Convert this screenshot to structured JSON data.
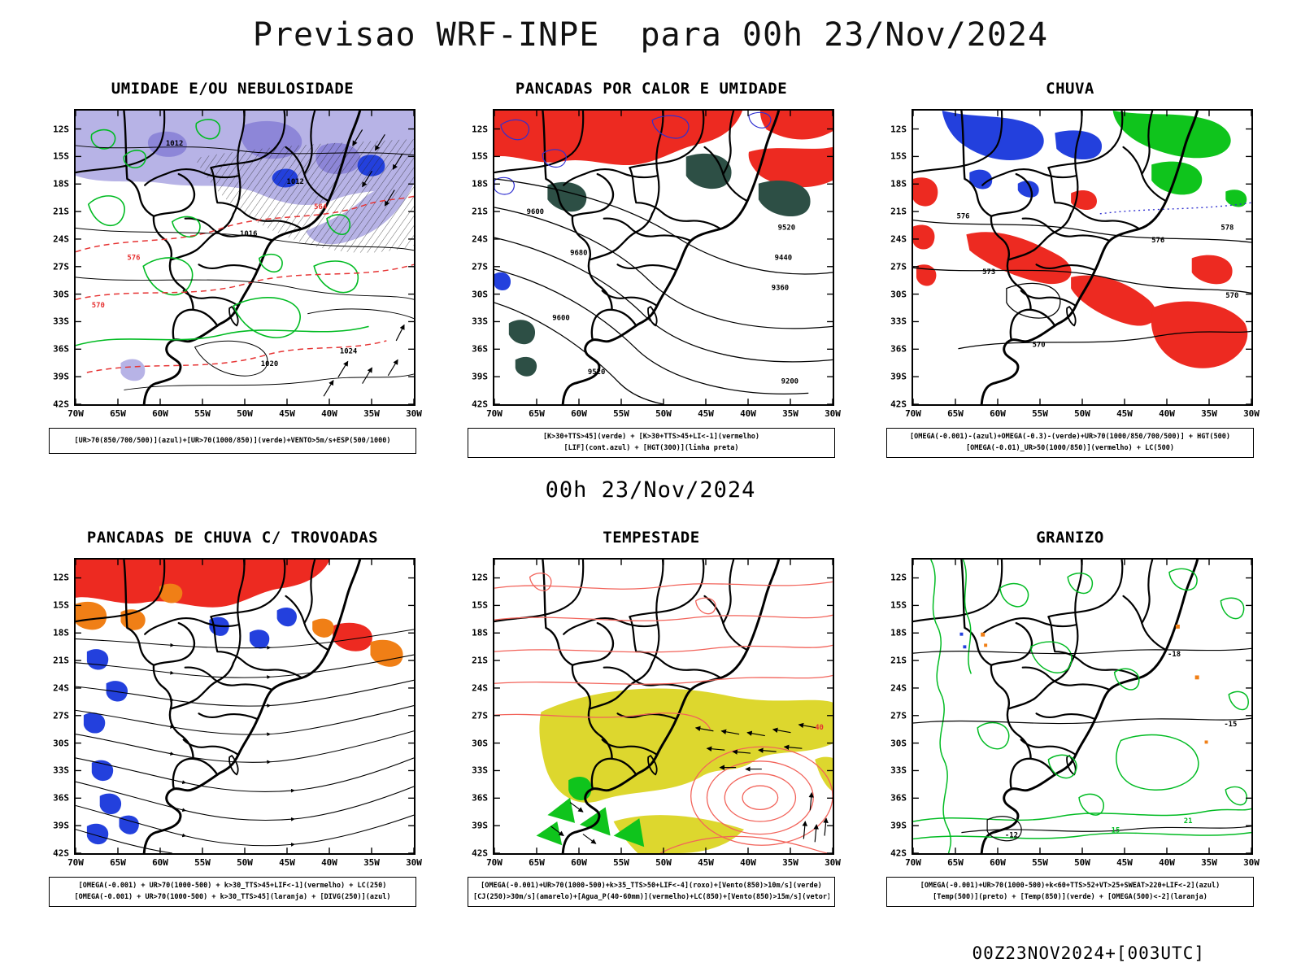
{
  "header": {
    "title": "Previsao WRF-INPE  para 00h 23/Nov/2024"
  },
  "valid_time_label": "00h 23/Nov/2024",
  "footer": {
    "run_label": "00Z23NOV2024+[003UTC]"
  },
  "axes": {
    "lat": [
      "12S",
      "15S",
      "18S",
      "21S",
      "24S",
      "27S",
      "30S",
      "33S",
      "36S",
      "39S",
      "42S"
    ],
    "lon": [
      "70W",
      "65W",
      "60W",
      "55W",
      "50W",
      "45W",
      "40W",
      "35W",
      "30W"
    ]
  },
  "colors": {
    "red": "#ed2a21",
    "orange": "#f07f16",
    "blue": "#2340dd",
    "green": "#0fc41c",
    "dark_teal": "#2d4f45",
    "lavender": "#b7b3e6",
    "purple": "#8d86d8",
    "yellow": "#ddd72e",
    "pink_contour": "#f2635a",
    "green_contour": "#00bb22",
    "blue_contour": "#2f2fd0",
    "red_contour": "#e63333"
  },
  "panels": [
    {
      "id": "umidade",
      "title": "UMIDADE E/OU NEBULOSIDADE",
      "caption1": "[UR>70(850/700/500)](azul)+[UR>70(1000/850)](verde)+VENTO>5m/s+ESP(500/1000)",
      "labels": {
        "l1": "1012",
        "l2": "1012",
        "l3": "1016",
        "l4": "1020",
        "l5": "1024",
        "l6": "576",
        "l7": "570",
        "l8": "564"
      }
    },
    {
      "id": "pancadas-calor-umidade",
      "title": "PANCADAS POR CALOR E UMIDADE",
      "caption1": "[K>30+TTS>45](verde) + [K>30+TTS>45+LI<-1](vermelho)",
      "caption2": "[LIF](cont.azul) + [HGT(300)](linha preta)",
      "labels": {
        "l1": "9680",
        "l2": "9600",
        "l3": "9520",
        "l4": "9440",
        "l5": "9360",
        "l6": "9600",
        "l7": "9520",
        "l8": "9200"
      }
    },
    {
      "id": "chuva",
      "title": "CHUVA",
      "caption1": "[OMEGA(-0.001)-(azul)+OMEGA(-0.3)-(verde)+UR>70(1000/850/700/500)] + HGT(500)",
      "caption2": "[OMEGA(-0.01)_UR>50(1000/850)](vermelho) + LC(500)",
      "labels": {
        "l1": "578",
        "l2": "576",
        "l3": "573",
        "l4": "570",
        "l5": "576",
        "l6": "570"
      }
    },
    {
      "id": "pancadas-trovoadas",
      "title": "PANCADAS DE CHUVA C/ TROVOADAS",
      "caption1": "[OMEGA(-0.001) + UR>70(1000-500) + k>30_TTS>45+LIF<-1](vermelho) + LC(250)",
      "caption2": "[OMEGA(-0.001) + UR>70(1000-500) + k>30_TTS>45](laranja) + [DIVG(250)](azul)"
    },
    {
      "id": "tempestade",
      "title": "TEMPESTADE",
      "caption1": "[OMEGA(-0.001)+UR>70(1000-500)+k>35_TTS>50+LIF<-4](roxo)+[Vento(850)>10m/s](verde)",
      "caption2": "[CJ(250)>30m/s](amarelo)+[Agua_P(40-60mm)](vermelho)+LC(850)+[Vento(850)>15m/s](vetor)",
      "labels": {
        "l1": "40"
      }
    },
    {
      "id": "granizo",
      "title": "GRANIZO",
      "caption1": "[OMEGA(-0.001)+UR>70(1000-500)+k<60+TTS>52+VT>25+SWEAT>220+LIF<-2](azul)",
      "caption2": "[Temp(500)](preto) + [Temp(850)](verde) + [OMEGA(500)<-2](laranja)",
      "labels": {
        "l1": "-18",
        "l2": "-15",
        "l3": "-12",
        "l4": "15",
        "l5": "21"
      }
    }
  ]
}
